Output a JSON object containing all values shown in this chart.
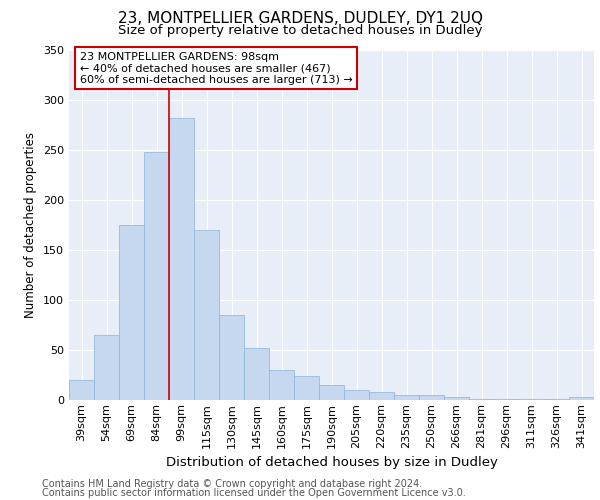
{
  "title1": "23, MONTPELLIER GARDENS, DUDLEY, DY1 2UQ",
  "title2": "Size of property relative to detached houses in Dudley",
  "xlabel": "Distribution of detached houses by size in Dudley",
  "ylabel": "Number of detached properties",
  "categories": [
    "39sqm",
    "54sqm",
    "69sqm",
    "84sqm",
    "99sqm",
    "115sqm",
    "130sqm",
    "145sqm",
    "160sqm",
    "175sqm",
    "190sqm",
    "205sqm",
    "220sqm",
    "235sqm",
    "250sqm",
    "266sqm",
    "281sqm",
    "296sqm",
    "311sqm",
    "326sqm",
    "341sqm"
  ],
  "values": [
    20,
    65,
    175,
    248,
    282,
    170,
    85,
    52,
    30,
    24,
    15,
    10,
    8,
    5,
    5,
    3,
    1,
    1,
    1,
    1,
    3
  ],
  "bar_color": "#c5d8f0",
  "bar_edge_color": "#8ab4d8",
  "highlight_line_color": "#cc0000",
  "highlight_bar_index": 4,
  "annotation_text": "23 MONTPELLIER GARDENS: 98sqm\n← 40% of detached houses are smaller (467)\n60% of semi-detached houses are larger (713) →",
  "annotation_box_color": "white",
  "annotation_box_edge_color": "#cc0000",
  "ylim": [
    0,
    350
  ],
  "yticks": [
    0,
    50,
    100,
    150,
    200,
    250,
    300,
    350
  ],
  "footnote1": "Contains HM Land Registry data © Crown copyright and database right 2024.",
  "footnote2": "Contains public sector information licensed under the Open Government Licence v3.0.",
  "background_color": "#e8eef8",
  "grid_color": "white",
  "title1_fontsize": 11,
  "title2_fontsize": 9.5,
  "xlabel_fontsize": 9.5,
  "ylabel_fontsize": 8.5,
  "tick_fontsize": 8,
  "annotation_fontsize": 8,
  "footnote_fontsize": 7
}
